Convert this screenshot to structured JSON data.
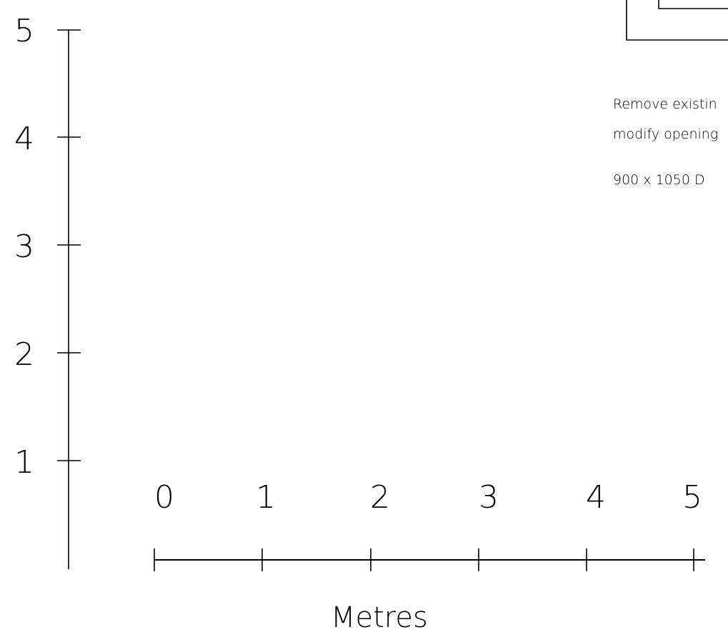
{
  "vertical_scale": {
    "labels": [
      "5",
      "4",
      "3",
      "2",
      "1"
    ]
  },
  "horizontal_scale": {
    "labels": [
      "0",
      "1",
      "2",
      "3",
      "4",
      "5"
    ],
    "unit": "Metres"
  },
  "annotation": {
    "lines": [
      "Remove existin",
      "modify opening",
      "900 x 1050 D"
    ]
  }
}
